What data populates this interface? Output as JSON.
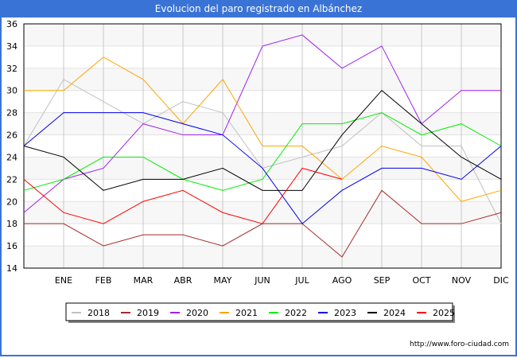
{
  "header": {
    "title": "Evolucion del paro registrado en Albánchez"
  },
  "footer": {
    "url": "http://www.foro-ciudad.com"
  },
  "chart_data": {
    "type": "line",
    "title": "Evolucion del paro registrado en Albánchez",
    "xlabel": "",
    "ylabel": "",
    "categories": [
      "",
      "ENE",
      "FEB",
      "MAR",
      "ABR",
      "MAY",
      "JUN",
      "JUL",
      "AGO",
      "SEP",
      "OCT",
      "NOV",
      "DIC"
    ],
    "y_ticks": [
      14,
      16,
      18,
      20,
      22,
      24,
      26,
      28,
      30,
      32,
      34,
      36
    ],
    "ylim": [
      14,
      36
    ],
    "grid": true,
    "legend_position": "bottom",
    "series": [
      {
        "name": "2018",
        "color": "#c0c0c0",
        "values": [
          25,
          31,
          29,
          27,
          29,
          28,
          23,
          24,
          25,
          28,
          25,
          25,
          18
        ]
      },
      {
        "name": "2019",
        "color": "#a52a2a",
        "values": [
          18,
          18,
          16,
          17,
          17,
          16,
          18,
          18,
          15,
          21,
          18,
          18,
          19
        ]
      },
      {
        "name": "2020",
        "color": "#a020f0",
        "values": [
          19,
          22,
          23,
          27,
          26,
          26,
          34,
          35,
          32,
          34,
          27,
          30,
          30
        ]
      },
      {
        "name": "2021",
        "color": "#ffa500",
        "values": [
          30,
          30,
          33,
          31,
          27,
          31,
          25,
          25,
          22,
          25,
          24,
          20,
          21
        ]
      },
      {
        "name": "2022",
        "color": "#00ee00",
        "values": [
          21,
          22,
          24,
          24,
          22,
          21,
          22,
          27,
          27,
          28,
          26,
          27,
          25
        ]
      },
      {
        "name": "2023",
        "color": "#0000ee",
        "values": [
          25,
          28,
          28,
          28,
          27,
          26,
          23,
          18,
          21,
          23,
          23,
          22,
          25
        ]
      },
      {
        "name": "2024",
        "color": "#000000",
        "values": [
          25,
          24,
          21,
          22,
          22,
          23,
          21,
          21,
          26,
          30,
          27,
          24,
          22
        ]
      },
      {
        "name": "2025",
        "color": "#ff0000",
        "values": [
          22,
          19,
          18,
          20,
          21,
          19,
          18,
          23,
          22
        ]
      }
    ]
  }
}
